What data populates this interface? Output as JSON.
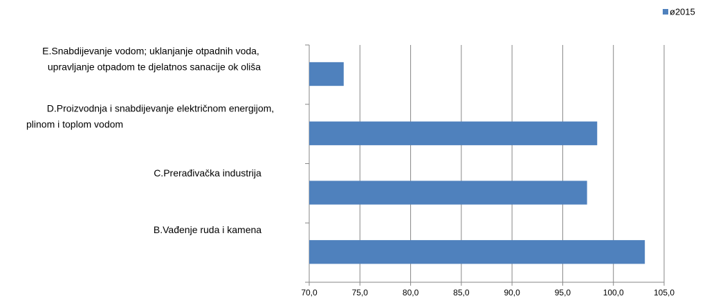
{
  "chart_data": {
    "type": "bar",
    "orientation": "horizontal",
    "categories": [
      [
        "E.Snabdijevanje vodom; uklanjanje otpadnih voda,",
        "upravljanje otpadom te djelatnos sanacije ok  oliša"
      ],
      [
        "D.Proizvodnja i snabdijevanje električnom energijom,",
        "plinom i toplom vodom"
      ],
      [
        "C.Prerađivačka industrija"
      ],
      [
        "B.Vađenje ruda i kamena"
      ]
    ],
    "series": [
      {
        "name": "ø2015",
        "color": "#4f81bd",
        "values": [
          73.4,
          98.4,
          97.4,
          103.1
        ]
      }
    ],
    "xlim": [
      70,
      105
    ],
    "xticks": [
      {
        "value": 70,
        "label": "70,0"
      },
      {
        "value": 75,
        "label": "75,0"
      },
      {
        "value": 80,
        "label": "80,0"
      },
      {
        "value": 85,
        "label": "85,0"
      },
      {
        "value": 90,
        "label": "90,0"
      },
      {
        "value": 95,
        "label": "95,0"
      },
      {
        "value": 100,
        "label": "100,0"
      },
      {
        "value": 105,
        "label": "105,0"
      }
    ],
    "grid": true,
    "legend": "top-right"
  }
}
